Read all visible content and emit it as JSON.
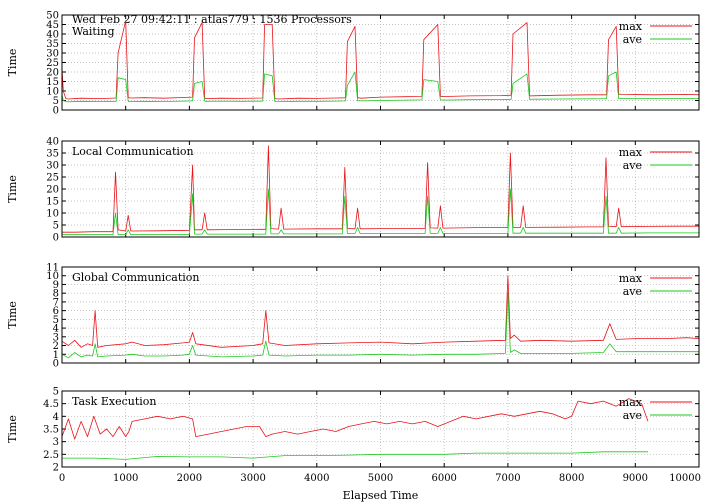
{
  "header": "Wed Feb 27 09:42:11 : atlas779 : 1536 Processors",
  "x_axis_label": "Elapsed Time",
  "colors": {
    "max": "#e8141a",
    "ave": "#1ec81e",
    "grid": "#b0b0b0",
    "frame": "#000000"
  },
  "chart_data": [
    {
      "type": "line",
      "title": "Waiting",
      "ylabel": "Time",
      "xlim": [
        0,
        10000
      ],
      "ylim": [
        0,
        50
      ],
      "yticks": [
        0,
        5,
        10,
        15,
        20,
        25,
        30,
        35,
        40,
        45,
        50
      ],
      "xticks": [
        0,
        1000,
        2000,
        3000,
        4000,
        5000,
        6000,
        7000,
        8000,
        9000,
        10000
      ],
      "show_xtick_labels": false,
      "grid": true,
      "legend": "top-right",
      "series": [
        {
          "name": "max",
          "x": [
            0,
            20,
            60,
            100,
            300,
            600,
            850,
            880,
            1000,
            1040,
            1080,
            1300,
            1600,
            1900,
            2050,
            2080,
            2200,
            2240,
            2260,
            2500,
            2800,
            3150,
            3180,
            3300,
            3340,
            3400,
            3700,
            4000,
            4300,
            4450,
            4480,
            4600,
            4640,
            4700,
            5000,
            5400,
            5650,
            5680,
            5900,
            5940,
            6000,
            6400,
            6900,
            7050,
            7080,
            7300,
            7340,
            7400,
            7800,
            8300,
            8550,
            8580,
            8700,
            8740,
            8800,
            9300,
            9800,
            10000
          ],
          "y": [
            22,
            10,
            6,
            5.8,
            6.2,
            6.0,
            6.3,
            30,
            47,
            6.5,
            6.3,
            6.5,
            6.2,
            6.6,
            6.8,
            38,
            46,
            6.2,
            6.0,
            6.2,
            6.1,
            6.3,
            45,
            45,
            6.0,
            5.8,
            6.2,
            6.1,
            6.3,
            6.4,
            36,
            44,
            6.5,
            6.2,
            6.8,
            7.0,
            7.1,
            37,
            45,
            7.2,
            7.1,
            7.4,
            7.6,
            7.8,
            40,
            46,
            7.4,
            7.5,
            7.8,
            8.0,
            8.0,
            37,
            44,
            8.3,
            8.2,
            8.0,
            8.2,
            8.0
          ]
        },
        {
          "name": "ave",
          "x": [
            0,
            20,
            60,
            100,
            300,
            600,
            850,
            880,
            1000,
            1040,
            1080,
            1300,
            1600,
            1900,
            2050,
            2080,
            2200,
            2240,
            2260,
            2500,
            2800,
            3150,
            3180,
            3300,
            3340,
            3400,
            3700,
            4000,
            4300,
            4450,
            4480,
            4600,
            4640,
            4700,
            5000,
            5400,
            5650,
            5680,
            5900,
            5940,
            6000,
            6400,
            6900,
            7050,
            7080,
            7300,
            7340,
            7400,
            7800,
            8300,
            8550,
            8580,
            8700,
            8740,
            8800,
            9300,
            9800,
            10000
          ],
          "y": [
            8,
            5,
            4.5,
            4.3,
            4.6,
            4.5,
            4.6,
            17,
            16,
            4.6,
            4.5,
            4.6,
            4.5,
            4.7,
            4.8,
            14,
            15,
            4.7,
            4.6,
            4.7,
            4.6,
            4.7,
            19,
            18,
            4.5,
            4.4,
            4.6,
            4.6,
            4.7,
            4.8,
            13,
            20,
            4.9,
            4.8,
            5.0,
            5.2,
            5.3,
            16,
            15,
            5.3,
            5.2,
            5.4,
            5.5,
            5.6,
            14,
            19,
            5.6,
            5.7,
            5.8,
            5.9,
            6.0,
            18,
            20,
            6.0,
            6.0,
            6.0,
            6.1,
            6.0
          ]
        }
      ]
    },
    {
      "type": "line",
      "title": "Local Communication",
      "ylabel": "Time",
      "xlim": [
        0,
        10000
      ],
      "ylim": [
        0,
        40
      ],
      "yticks": [
        0,
        5,
        10,
        15,
        20,
        25,
        30,
        35,
        40
      ],
      "xticks": [
        0,
        1000,
        2000,
        3000,
        4000,
        5000,
        6000,
        7000,
        8000,
        9000,
        10000
      ],
      "show_xtick_labels": false,
      "grid": true,
      "legend": "top-right",
      "series": [
        {
          "name": "max",
          "x": [
            0,
            200,
            500,
            800,
            840,
            880,
            1000,
            1040,
            1080,
            1500,
            2000,
            2050,
            2080,
            2200,
            2240,
            2280,
            2600,
            3100,
            3200,
            3240,
            3280,
            3400,
            3440,
            3480,
            4000,
            4400,
            4440,
            4480,
            4600,
            4640,
            4680,
            5000,
            5500,
            5700,
            5740,
            5780,
            5900,
            5940,
            5980,
            6500,
            7000,
            7040,
            7080,
            7200,
            7240,
            7280,
            7800,
            8300,
            8500,
            8540,
            8580,
            8700,
            8740,
            8780,
            9200,
            9600,
            10000
          ],
          "y": [
            2,
            2,
            2.2,
            2.2,
            27,
            3,
            2.5,
            9,
            2.5,
            2.6,
            2.8,
            30,
            3,
            3,
            10,
            3,
            3.1,
            3.2,
            3.2,
            38,
            3.5,
            3.3,
            12,
            3.3,
            3.4,
            3.4,
            29,
            3.6,
            3.4,
            12,
            3.4,
            3.5,
            3.6,
            3.6,
            31,
            3.8,
            3.7,
            13,
            3.7,
            3.9,
            3.9,
            35,
            4,
            4,
            13,
            4,
            4.1,
            4.2,
            4.2,
            33,
            4.4,
            4.3,
            12,
            4.3,
            4.4,
            4.5,
            4.5
          ]
        },
        {
          "name": "ave",
          "x": [
            0,
            200,
            500,
            800,
            840,
            880,
            1000,
            1040,
            1080,
            1500,
            2000,
            2050,
            2080,
            2200,
            2240,
            2280,
            2600,
            3100,
            3200,
            3240,
            3280,
            3400,
            3440,
            3480,
            4000,
            4400,
            4440,
            4480,
            4600,
            4640,
            4680,
            5000,
            5500,
            5700,
            5740,
            5780,
            5900,
            5940,
            5980,
            6500,
            7000,
            7040,
            7080,
            7200,
            7240,
            7280,
            7800,
            8300,
            8500,
            8540,
            8580,
            8700,
            8740,
            8780,
            9200,
            9600,
            10000
          ],
          "y": [
            1,
            1,
            1,
            1,
            10,
            1,
            1,
            3,
            1,
            1,
            1,
            18,
            1.2,
            1.2,
            3,
            1.2,
            1.2,
            1.2,
            1.2,
            20,
            1.3,
            1.3,
            3,
            1.3,
            1.3,
            1.3,
            17,
            1.4,
            1.4,
            4,
            1.4,
            1.4,
            1.4,
            1.4,
            17,
            1.5,
            1.5,
            4,
            1.5,
            1.5,
            1.5,
            20,
            1.6,
            1.6,
            4,
            1.6,
            1.6,
            1.6,
            1.6,
            17,
            1.6,
            1.6,
            4,
            1.6,
            1.7,
            1.7,
            1.7
          ]
        }
      ]
    },
    {
      "type": "line",
      "title": "Global Communication",
      "ylabel": "Time",
      "xlim": [
        0,
        10000
      ],
      "ylim": [
        0,
        11
      ],
      "yticks": [
        0,
        1,
        2,
        3,
        4,
        5,
        6,
        7,
        8,
        9,
        10,
        11
      ],
      "xticks": [
        0,
        1000,
        2000,
        3000,
        4000,
        5000,
        6000,
        7000,
        8000,
        9000,
        10000
      ],
      "show_xtick_labels": false,
      "grid": true,
      "legend": "top-right",
      "series": [
        {
          "name": "max",
          "x": [
            0,
            100,
            200,
            300,
            400,
            480,
            520,
            560,
            700,
            1000,
            1100,
            1300,
            1600,
            1900,
            2000,
            2050,
            2100,
            2500,
            3000,
            3150,
            3200,
            3250,
            3500,
            4000,
            4500,
            5000,
            5500,
            6000,
            6500,
            6960,
            7000,
            7040,
            7100,
            7200,
            7500,
            8000,
            8500,
            8600,
            8700,
            9000,
            9500,
            9800,
            10000
          ],
          "y": [
            2.5,
            2.0,
            2.6,
            1.8,
            2.2,
            2.0,
            6.0,
            1.8,
            2.0,
            2.2,
            2.4,
            2.0,
            2.1,
            2.3,
            2.4,
            3.5,
            2.2,
            1.8,
            2.0,
            2.2,
            6.0,
            2.3,
            2.0,
            2.2,
            2.3,
            2.4,
            2.2,
            2.4,
            2.5,
            2.6,
            10.0,
            2.8,
            3.2,
            2.5,
            2.6,
            2.5,
            2.6,
            4.5,
            2.7,
            2.8,
            2.8,
            2.9,
            2.8
          ]
        },
        {
          "name": "ave",
          "x": [
            0,
            100,
            200,
            300,
            400,
            480,
            520,
            560,
            700,
            1000,
            1100,
            1300,
            1600,
            1900,
            2000,
            2050,
            2100,
            2500,
            3000,
            3150,
            3200,
            3250,
            3500,
            4000,
            4500,
            5000,
            5500,
            6000,
            6500,
            6960,
            7000,
            7040,
            7100,
            7200,
            7500,
            8000,
            8500,
            8600,
            8700,
            9000,
            9500,
            9800,
            10000
          ],
          "y": [
            1.0,
            0.6,
            1.2,
            0.7,
            0.9,
            0.8,
            2.2,
            0.7,
            0.8,
            0.9,
            1.0,
            0.8,
            0.8,
            0.9,
            1.0,
            2.0,
            0.9,
            0.7,
            0.8,
            0.9,
            2.5,
            0.9,
            0.8,
            0.9,
            0.9,
            1.0,
            0.9,
            1.0,
            1.0,
            1.1,
            8.0,
            1.2,
            1.5,
            1.1,
            1.1,
            1.1,
            1.2,
            2.2,
            1.3,
            1.3,
            1.3,
            1.3,
            1.3
          ]
        }
      ]
    },
    {
      "type": "line",
      "title": "Task Execution",
      "ylabel": "Time",
      "xlim": [
        0,
        10000
      ],
      "ylim": [
        2,
        5
      ],
      "yticks": [
        2,
        2.5,
        3,
        3.5,
        4,
        4.5,
        5
      ],
      "xticks": [
        0,
        1000,
        2000,
        3000,
        4000,
        5000,
        6000,
        7000,
        8000,
        9000,
        10000
      ],
      "show_xtick_labels": true,
      "grid": true,
      "legend": "top-right",
      "series": [
        {
          "name": "max",
          "x": [
            0,
            100,
            200,
            300,
            400,
            500,
            600,
            700,
            800,
            900,
            1000,
            1050,
            1100,
            1300,
            1500,
            1700,
            1900,
            2050,
            2100,
            2300,
            2500,
            2700,
            2900,
            3100,
            3200,
            3300,
            3500,
            3700,
            3900,
            4100,
            4300,
            4500,
            4700,
            4900,
            5100,
            5300,
            5500,
            5700,
            5900,
            6100,
            6300,
            6500,
            6700,
            6900,
            7100,
            7300,
            7500,
            7700,
            7900,
            8000,
            8100,
            8300,
            8500,
            8700,
            8900,
            9100,
            9200
          ],
          "y": [
            3.2,
            3.9,
            3.1,
            3.8,
            3.2,
            4.0,
            3.3,
            3.5,
            3.2,
            3.6,
            3.2,
            3.4,
            3.8,
            3.9,
            4.0,
            3.9,
            4.0,
            3.9,
            3.2,
            3.3,
            3.4,
            3.5,
            3.6,
            3.6,
            3.2,
            3.3,
            3.4,
            3.3,
            3.4,
            3.5,
            3.4,
            3.6,
            3.7,
            3.8,
            3.7,
            3.8,
            3.7,
            3.8,
            3.6,
            3.8,
            4.0,
            3.9,
            4.0,
            4.1,
            4.0,
            4.1,
            4.2,
            4.1,
            3.9,
            4.0,
            4.6,
            4.5,
            4.6,
            4.4,
            4.7,
            4.5,
            3.8
          ]
        },
        {
          "name": "ave",
          "x": [
            0,
            500,
            1000,
            1500,
            2000,
            2500,
            3000,
            3500,
            4000,
            4500,
            5000,
            5500,
            6000,
            6500,
            7000,
            7500,
            8000,
            8500,
            9000,
            9200
          ],
          "y": [
            2.35,
            2.35,
            2.3,
            2.42,
            2.4,
            2.4,
            2.35,
            2.45,
            2.45,
            2.47,
            2.5,
            2.5,
            2.5,
            2.55,
            2.55,
            2.55,
            2.55,
            2.6,
            2.6,
            2.6
          ]
        }
      ]
    }
  ]
}
